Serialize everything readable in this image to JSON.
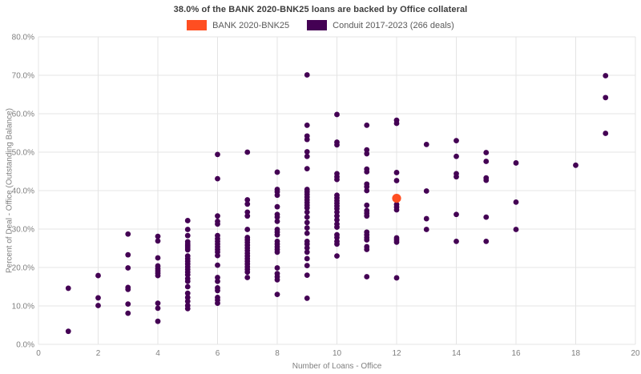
{
  "header": {
    "title": "38.0% of the BANK 2020-BNK25 loans are backed by Office collateral"
  },
  "chart_data": {
    "type": "scatter",
    "title": "38.0% of the BANK 2020-BNK25 loans are backed by Office collateral",
    "xlabel": "Number of Loans - Office",
    "ylabel": "Percent of Deal - Office (Outstanding Balance)",
    "xlim": [
      0,
      20
    ],
    "ylim": [
      0,
      80
    ],
    "grid": true,
    "legend_position": "top-center",
    "x_ticks": [
      0,
      2,
      4,
      6,
      8,
      10,
      12,
      14,
      16,
      18,
      20
    ],
    "y_ticks": [
      [
        0,
        "0.0%"
      ],
      [
        10,
        "10.0%"
      ],
      [
        20,
        "20.0%"
      ],
      [
        30,
        "30.0%"
      ],
      [
        40,
        "40.0%"
      ],
      [
        50,
        "50.0%"
      ],
      [
        60,
        "60.0%"
      ],
      [
        70,
        "70.0%"
      ],
      [
        80,
        "80.0%"
      ]
    ],
    "series": [
      {
        "name": "BANK 2020-BNK25",
        "color": "#ff4e21",
        "marker_radius": 5.6,
        "points": [
          [
            12,
            38.0
          ]
        ]
      },
      {
        "name": "Conduit 2017-2023 (266 deals)",
        "color": "#440154",
        "marker_radius": 3.4,
        "points": [
          [
            1,
            14.6
          ],
          [
            1,
            3.4
          ],
          [
            2,
            17.9
          ],
          [
            2,
            12.1
          ],
          [
            2,
            10.1
          ],
          [
            3,
            28.7
          ],
          [
            3,
            23.3
          ],
          [
            3,
            19.9
          ],
          [
            3,
            14.8
          ],
          [
            3,
            14.3
          ],
          [
            3,
            10.5
          ],
          [
            3,
            8.1
          ],
          [
            4,
            28.1
          ],
          [
            4,
            26.9
          ],
          [
            4,
            22.5
          ],
          [
            4,
            20.4
          ],
          [
            4,
            19.7
          ],
          [
            4,
            19.1
          ],
          [
            4,
            18.5
          ],
          [
            4,
            17.9
          ],
          [
            4,
            10.7
          ],
          [
            4,
            9.4
          ],
          [
            4,
            6.0
          ],
          [
            5,
            32.2
          ],
          [
            5,
            29.9
          ],
          [
            5,
            28.3
          ],
          [
            5,
            26.7
          ],
          [
            5,
            26.1
          ],
          [
            5,
            25.6
          ],
          [
            5,
            25.1
          ],
          [
            5,
            24.6
          ],
          [
            5,
            23.0
          ],
          [
            5,
            22.3
          ],
          [
            5,
            21.6
          ],
          [
            5,
            20.9
          ],
          [
            5,
            20.2
          ],
          [
            5,
            19.5
          ],
          [
            5,
            18.8
          ],
          [
            5,
            18.1
          ],
          [
            5,
            17.1
          ],
          [
            5,
            16.4
          ],
          [
            5,
            15.0
          ],
          [
            5,
            13.3
          ],
          [
            5,
            12.2
          ],
          [
            5,
            11.2
          ],
          [
            5,
            10.1
          ],
          [
            5,
            9.3
          ],
          [
            6,
            49.4
          ],
          [
            6,
            43.1
          ],
          [
            6,
            33.4
          ],
          [
            6,
            32.0
          ],
          [
            6,
            31.3
          ],
          [
            6,
            28.3
          ],
          [
            6,
            27.5
          ],
          [
            6,
            26.8
          ],
          [
            6,
            26.1
          ],
          [
            6,
            25.4
          ],
          [
            6,
            24.7
          ],
          [
            6,
            24.0
          ],
          [
            6,
            23.1
          ],
          [
            6,
            20.6
          ],
          [
            6,
            17.4
          ],
          [
            6,
            16.4
          ],
          [
            6,
            14.7
          ],
          [
            6,
            14.0
          ],
          [
            6,
            12.2
          ],
          [
            6,
            11.5
          ],
          [
            6,
            10.7
          ],
          [
            7,
            50.0
          ],
          [
            7,
            37.6
          ],
          [
            7,
            36.5
          ],
          [
            7,
            34.4
          ],
          [
            7,
            33.4
          ],
          [
            7,
            29.9
          ],
          [
            7,
            27.8
          ],
          [
            7,
            27.2
          ],
          [
            7,
            26.5
          ],
          [
            7,
            25.8
          ],
          [
            7,
            25.1
          ],
          [
            7,
            24.4
          ],
          [
            7,
            23.7
          ],
          [
            7,
            23.0
          ],
          [
            7,
            22.3
          ],
          [
            7,
            21.6
          ],
          [
            7,
            20.9
          ],
          [
            7,
            20.2
          ],
          [
            7,
            19.5
          ],
          [
            7,
            18.8
          ],
          [
            7,
            17.4
          ],
          [
            8,
            44.8
          ],
          [
            8,
            40.3
          ],
          [
            8,
            39.7
          ],
          [
            8,
            38.8
          ],
          [
            8,
            35.8
          ],
          [
            8,
            33.8
          ],
          [
            8,
            33.1
          ],
          [
            8,
            32.0
          ],
          [
            8,
            29.9
          ],
          [
            8,
            29.2
          ],
          [
            8,
            28.5
          ],
          [
            8,
            26.8
          ],
          [
            8,
            26.1
          ],
          [
            8,
            25.4
          ],
          [
            8,
            24.7
          ],
          [
            8,
            24.0
          ],
          [
            8,
            19.9
          ],
          [
            8,
            18.4
          ],
          [
            8,
            17.6
          ],
          [
            8,
            16.8
          ],
          [
            8,
            13.0
          ],
          [
            9,
            70.1
          ],
          [
            9,
            57.0
          ],
          [
            9,
            54.2
          ],
          [
            9,
            53.3
          ],
          [
            9,
            50.1
          ],
          [
            9,
            48.9
          ],
          [
            9,
            45.7
          ],
          [
            9,
            40.3
          ],
          [
            9,
            39.7
          ],
          [
            9,
            39.0
          ],
          [
            9,
            38.3
          ],
          [
            9,
            37.6
          ],
          [
            9,
            36.9
          ],
          [
            9,
            36.2
          ],
          [
            9,
            35.5
          ],
          [
            9,
            34.4
          ],
          [
            9,
            33.1
          ],
          [
            9,
            31.7
          ],
          [
            9,
            30.3
          ],
          [
            9,
            28.9
          ],
          [
            9,
            26.8
          ],
          [
            9,
            26.1
          ],
          [
            9,
            25.1
          ],
          [
            9,
            24.0
          ],
          [
            9,
            22.3
          ],
          [
            9,
            20.5
          ],
          [
            9,
            18.0
          ],
          [
            9,
            12.0
          ],
          [
            10,
            59.8
          ],
          [
            10,
            52.6
          ],
          [
            10,
            51.9
          ],
          [
            10,
            44.4
          ],
          [
            10,
            43.6
          ],
          [
            10,
            42.9
          ],
          [
            10,
            38.8
          ],
          [
            10,
            38.1
          ],
          [
            10,
            37.4
          ],
          [
            10,
            36.7
          ],
          [
            10,
            36.0
          ],
          [
            10,
            35.3
          ],
          [
            10,
            34.4
          ],
          [
            10,
            33.4
          ],
          [
            10,
            32.4
          ],
          [
            10,
            31.3
          ],
          [
            10,
            30.5
          ],
          [
            10,
            28.5
          ],
          [
            10,
            27.8
          ],
          [
            10,
            26.8
          ],
          [
            10,
            26.1
          ],
          [
            10,
            23.0
          ],
          [
            11,
            57.0
          ],
          [
            11,
            50.6
          ],
          [
            11,
            49.6
          ],
          [
            11,
            45.6
          ],
          [
            11,
            44.9
          ],
          [
            11,
            41.7
          ],
          [
            11,
            41.0
          ],
          [
            11,
            40.0
          ],
          [
            11,
            36.2
          ],
          [
            11,
            34.8
          ],
          [
            11,
            34.1
          ],
          [
            11,
            33.4
          ],
          [
            11,
            29.2
          ],
          [
            11,
            28.5
          ],
          [
            11,
            27.8
          ],
          [
            11,
            27.2
          ],
          [
            11,
            25.4
          ],
          [
            11,
            24.7
          ],
          [
            11,
            17.6
          ],
          [
            12,
            58.3
          ],
          [
            12,
            57.5
          ],
          [
            12,
            44.7
          ],
          [
            12,
            42.6
          ],
          [
            12,
            36.4
          ],
          [
            12,
            35.7
          ],
          [
            12,
            35.0
          ],
          [
            12,
            27.7
          ],
          [
            12,
            27.2
          ],
          [
            12,
            26.6
          ],
          [
            12,
            17.3
          ],
          [
            13,
            52.0
          ],
          [
            13,
            39.9
          ],
          [
            13,
            32.7
          ],
          [
            13,
            29.9
          ],
          [
            14,
            53.0
          ],
          [
            14,
            48.9
          ],
          [
            14,
            44.4
          ],
          [
            14,
            43.6
          ],
          [
            14,
            33.8
          ],
          [
            14,
            26.8
          ],
          [
            15,
            49.9
          ],
          [
            15,
            47.6
          ],
          [
            15,
            43.3
          ],
          [
            15,
            42.7
          ],
          [
            15,
            33.1
          ],
          [
            15,
            26.8
          ],
          [
            16,
            47.2
          ],
          [
            16,
            37.0
          ],
          [
            16,
            29.9
          ],
          [
            18,
            46.6
          ],
          [
            19,
            69.9
          ],
          [
            19,
            64.2
          ],
          [
            19,
            54.9
          ]
        ]
      }
    ],
    "colors": {
      "grid": "#e4e4e4",
      "tick_text": "#7f7f7f",
      "title_text": "#3d3d3d",
      "legend_text": "#5a5a5a"
    }
  }
}
